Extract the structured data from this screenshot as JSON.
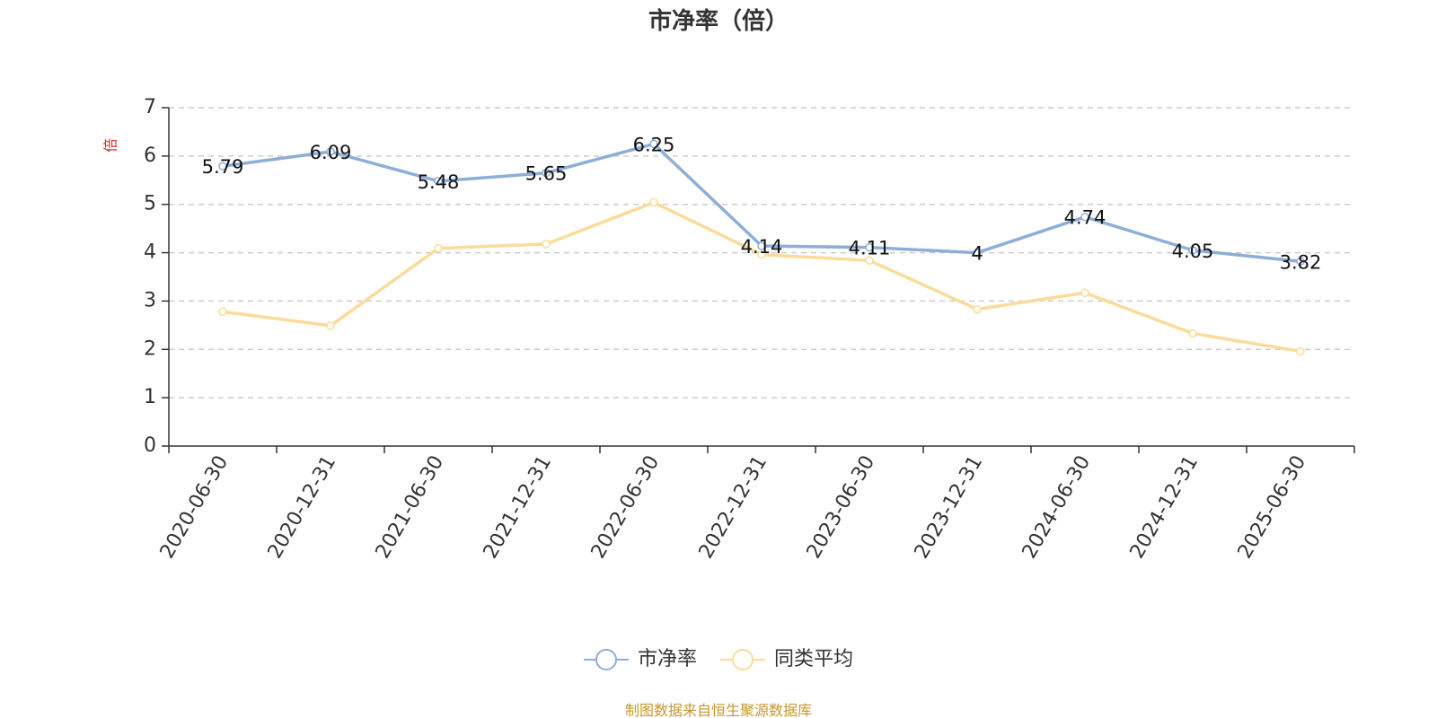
{
  "chart_data": {
    "type": "line",
    "title": "市净率（倍）",
    "ylabel": "倍",
    "xlabel": "",
    "categories": [
      "2020-06-30",
      "2020-12-31",
      "2021-06-30",
      "2021-12-31",
      "2022-06-30",
      "2022-12-31",
      "2023-06-30",
      "2023-12-31",
      "2024-06-30",
      "2024-12-31",
      "2025-06-30"
    ],
    "ylim": [
      0,
      7
    ],
    "yticks": [
      "0",
      "1",
      "2",
      "3",
      "4",
      "5",
      "6",
      "7"
    ],
    "grid": true,
    "legend_position": "bottom-center",
    "series": [
      {
        "name": "市净率",
        "color": "#8eaed8",
        "values": [
          5.79,
          6.09,
          5.48,
          5.65,
          6.25,
          4.14,
          4.11,
          4.0,
          4.74,
          4.05,
          3.82
        ],
        "labels": [
          "5.79",
          "6.09",
          "5.48",
          "5.65",
          "6.25",
          "4.14",
          "4.11",
          "4",
          "4.74",
          "4.05",
          "3.82"
        ]
      },
      {
        "name": "同类平均",
        "color": "#fbdb9a",
        "values": [
          2.78,
          2.49,
          4.09,
          4.18,
          5.04,
          3.96,
          3.84,
          2.83,
          3.17,
          2.33,
          1.96
        ]
      }
    ]
  },
  "source_note": "制图数据来自恒生聚源数据库"
}
